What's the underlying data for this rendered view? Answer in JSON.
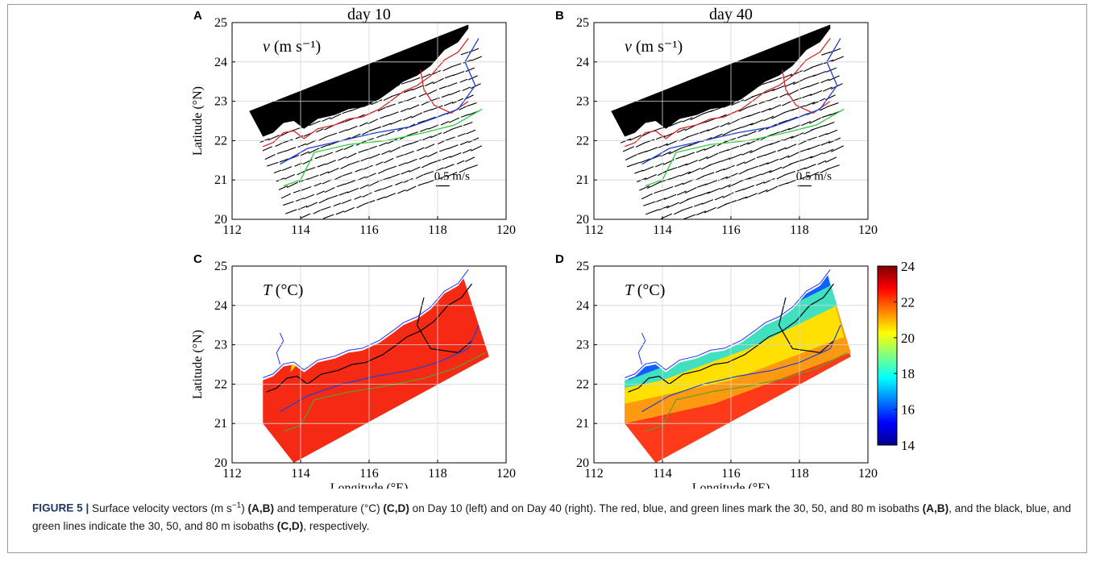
{
  "panels": {
    "A": {
      "letter": "A",
      "title": "day 10",
      "quantity": "v",
      "unit": "(m s⁻¹)",
      "scale_label": "0.5 m/s"
    },
    "B": {
      "letter": "B",
      "title": "day 40",
      "quantity": "v",
      "unit": "(m s⁻¹)",
      "scale_label": "0.5 m/s"
    },
    "C": {
      "letter": "C",
      "quantity": "T",
      "unit": "(°C)"
    },
    "D": {
      "letter": "D",
      "quantity": "T",
      "unit": "(°C)"
    }
  },
  "axes": {
    "xlabel": "Longitude (°E)",
    "ylabel": "Latitude (°N)",
    "xticks": [
      "112",
      "114",
      "116",
      "118",
      "120"
    ],
    "yticks": [
      "25",
      "24",
      "23",
      "22",
      "21",
      "20"
    ]
  },
  "colorbar": {
    "ticks": [
      "24",
      "22",
      "20",
      "18",
      "16",
      "14"
    ],
    "stops": [
      "#7f0000",
      "#ff0000",
      "#ff8000",
      "#ffff00",
      "#80ff80",
      "#00ffff",
      "#0080ff",
      "#0000ff",
      "#00008f"
    ]
  },
  "colors": {
    "isobath_30_vel": "#d62728",
    "isobath_50": "#1f3fd6",
    "isobath_80": "#2ecc40",
    "isobath_30_temp": "#000000",
    "land": "#000000",
    "vector": "#000000"
  },
  "chart_data": [
    {
      "type": "other",
      "panel": "A",
      "title": "day 10",
      "xlabel": "",
      "ylabel": "Latitude (°N)",
      "xlim": [
        112,
        120
      ],
      "ylim": [
        20,
        25
      ],
      "grid": true,
      "series": [
        {
          "name": "30 m isobath"
        },
        {
          "name": "50 m isobath"
        },
        {
          "name": "80 m isobath"
        }
      ]
    },
    {
      "type": "other",
      "panel": "B",
      "title": "day 40",
      "xlabel": "",
      "ylabel": "",
      "xlim": [
        112,
        120
      ],
      "ylim": [
        20,
        25
      ],
      "grid": true
    },
    {
      "type": "heatmap",
      "panel": "C",
      "xlabel": "Longitude (°E)",
      "ylabel": "Latitude (°N)",
      "xlim": [
        112,
        120
      ],
      "ylim": [
        20,
        25
      ],
      "grid": true,
      "clim": [
        14,
        24
      ]
    },
    {
      "type": "heatmap",
      "panel": "D",
      "xlabel": "Longitude (°E)",
      "ylabel": "",
      "xlim": [
        112,
        120
      ],
      "ylim": [
        20,
        25
      ],
      "grid": true,
      "clim": [
        14,
        24
      ]
    }
  ],
  "caption": {
    "label": "FIGURE 5 |",
    "parts": [
      {
        "t": " Surface velocity vectors (m s",
        "b": false
      },
      {
        "t": "−1",
        "b": false,
        "sup": true
      },
      {
        "t": ") ",
        "b": false
      },
      {
        "t": "(A,B)",
        "b": true
      },
      {
        "t": " and temperature (°C) ",
        "b": false
      },
      {
        "t": "(C,D)",
        "b": true
      },
      {
        "t": " on Day 10 (left) and on Day 40 (right). The red, blue, and green lines mark the 30, 50, and 80 m isobaths ",
        "b": false
      },
      {
        "t": "(A,B)",
        "b": true
      },
      {
        "t": ", and the black, blue, and green lines indicate the 30, 50, and 80 m isobaths ",
        "b": false
      },
      {
        "t": "(C,D)",
        "b": true
      },
      {
        "t": ", respectively.",
        "b": false
      }
    ]
  }
}
